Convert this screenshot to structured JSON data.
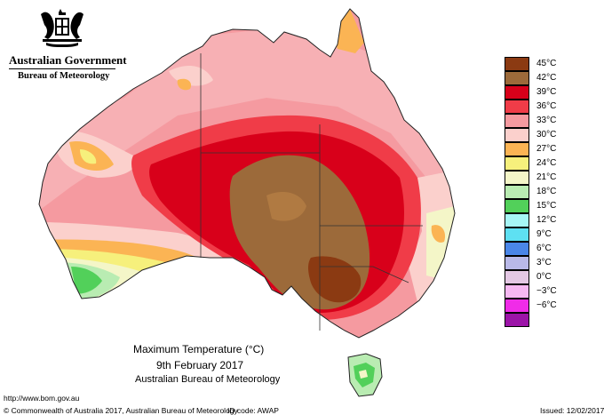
{
  "header": {
    "government": "Australian Government",
    "bureau": "Bureau of Meteorology"
  },
  "legend": {
    "items": [
      {
        "label": "45°C",
        "color": "#8b3a12"
      },
      {
        "label": "42°C",
        "color": "#9c6a3a"
      },
      {
        "label": "39°C",
        "color": "#d8001a"
      },
      {
        "label": "36°C",
        "color": "#f03c48"
      },
      {
        "label": "33°C",
        "color": "#f59aa0"
      },
      {
        "label": "30°C",
        "color": "#fbd0cc"
      },
      {
        "label": "27°C",
        "color": "#fbb454"
      },
      {
        "label": "24°C",
        "color": "#f6f07c"
      },
      {
        "label": "21°C",
        "color": "#f4f6c8"
      },
      {
        "label": "18°C",
        "color": "#b9ecb2"
      },
      {
        "label": "15°C",
        "color": "#52d05a"
      },
      {
        "label": "12°C",
        "color": "#a6f6f6"
      },
      {
        "label": "9°C",
        "color": "#5ee0f2"
      },
      {
        "label": "6°C",
        "color": "#4a86e8"
      },
      {
        "label": "3°C",
        "color": "#b9b9e8"
      },
      {
        "label": "0°C",
        "color": "#e4c8e4"
      },
      {
        "label": "−3°C",
        "color": "#f6b8f2"
      },
      {
        "label": "−6°C",
        "color": "#f02ce8"
      },
      {
        "label": "",
        "color": "#9c14a8"
      }
    ]
  },
  "title": {
    "line1": "Maximum Temperature (°C)",
    "line2": "9th February 2017",
    "line3": "Australian Bureau of Meteorology"
  },
  "footer": {
    "url": "http://www.bom.gov.au",
    "copyright": "© Commonwealth of Australia 2017, Australian Bureau of Meteorology",
    "id_code": "ID code: AWAP",
    "issued": "Issued: 12/02/2017"
  }
}
